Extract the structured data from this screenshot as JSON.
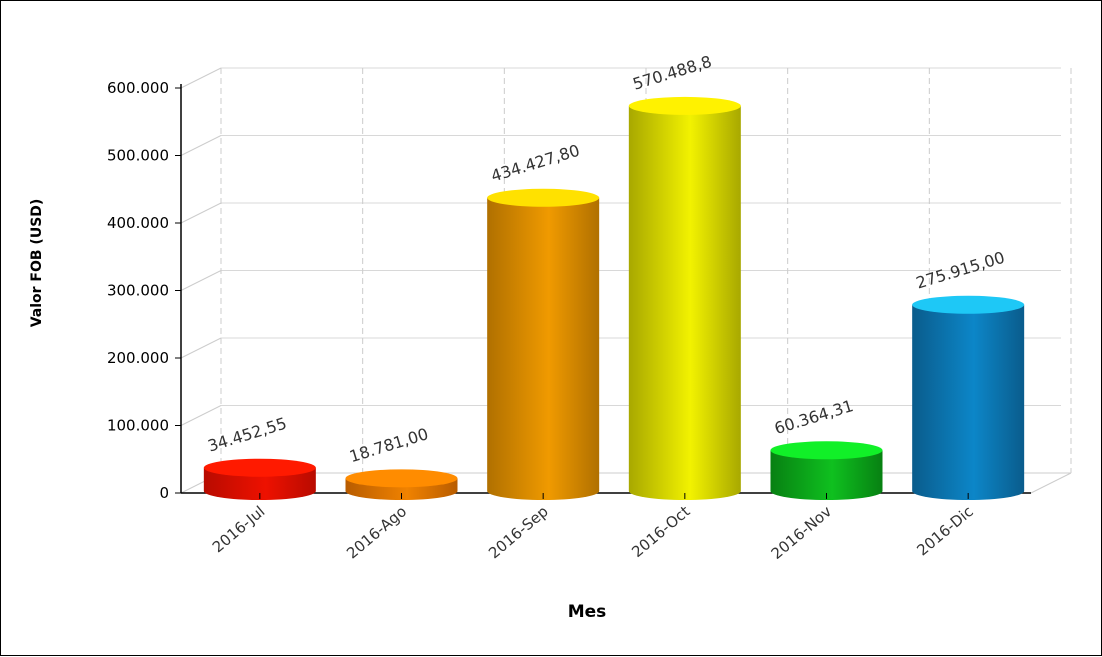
{
  "chart_data": {
    "type": "bar",
    "style": "3d-cylinder",
    "categories": [
      "2016-Jul",
      "2016-Ago",
      "2016-Sep",
      "2016-Oct",
      "2016-Nov",
      "2016-Dic"
    ],
    "values": [
      34452.55,
      18781.0,
      434427.8,
      570488.8,
      60364.31,
      275915.0
    ],
    "value_labels": [
      "34.452,55",
      "18.781,00",
      "434.427,80",
      "570.488,8",
      "60.364,31",
      "275.915,00"
    ],
    "xlabel": "Mes",
    "ylabel": "Valor FOB (USD)",
    "ylim": [
      0,
      600000
    ],
    "y_ticks": [
      0,
      100000,
      200000,
      300000,
      400000,
      500000,
      600000
    ],
    "y_tick_labels": [
      "0",
      "100.000",
      "200.000",
      "300.000",
      "400.000",
      "500.000",
      "600.000"
    ],
    "grid": true,
    "colors": [
      {
        "top": "#ff1a00",
        "light": "#ee1100",
        "dark": "#b80b00"
      },
      {
        "top": "#ff8c00",
        "light": "#f08200",
        "dark": "#b85c00"
      },
      {
        "top": "#ffe100",
        "light": "#f09a00",
        "dark": "#b07000"
      },
      {
        "top": "#fff200",
        "light": "#f2f200",
        "dark": "#a8a800"
      },
      {
        "top": "#11f028",
        "light": "#0fc01f",
        "dark": "#078012"
      },
      {
        "top": "#1ec8f6",
        "light": "#0c86c8",
        "dark": "#0a5c8c"
      }
    ]
  }
}
